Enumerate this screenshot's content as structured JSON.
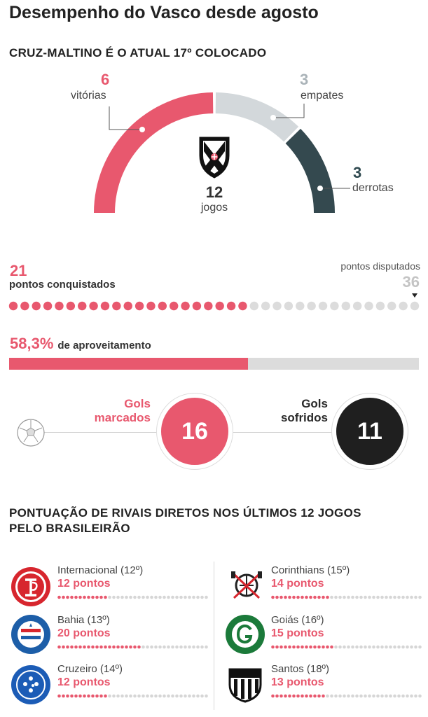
{
  "title": "Desempenho do Vasco desde agosto",
  "subtitle": "CRUZ-MALTINO É O ATUAL 17º COLOCADO",
  "chart_data": [
    {
      "type": "pie",
      "variant": "semicircle",
      "categories": [
        "vitórias",
        "empates",
        "derrotas"
      ],
      "values": [
        6,
        3,
        3
      ],
      "value_labels": [
        "6",
        "3",
        "3"
      ],
      "colors": [
        "#e8586e",
        "#d3d8db",
        "#34494f"
      ],
      "center_value": "12",
      "center_label": "jogos"
    },
    {
      "type": "bar",
      "variant": "dot-progress",
      "values": [
        21,
        36
      ],
      "won_value": "21",
      "won_label": "pontos conquistados",
      "total_value": "36",
      "total_label": "pontos disputados"
    },
    {
      "type": "bar",
      "variant": "progress",
      "values": [
        58.3
      ],
      "ylim": [
        0,
        100
      ],
      "value_label": "58,3%",
      "label": "de aproveitamento"
    },
    {
      "type": "table",
      "variant": "goals",
      "scored_label_1": "Gols",
      "scored_label_2": "marcados",
      "scored_value": "16",
      "conceded_label_1": "Gols",
      "conceded_label_2": "sofridos",
      "conceded_value": "11"
    },
    {
      "type": "bar",
      "variant": "dot-progress-list",
      "title_line1": "PONTUAÇÃO DE RIVAIS DIRETOS NOS ÚLTIMOS 12 JOGOS",
      "title_line2": "PELO BRASILEIRÃO",
      "max_points": 36,
      "teams": [
        {
          "name": "Internacional (12º)",
          "points": 12,
          "points_label": "12 pontos",
          "crest": "internacional-crest-icon",
          "color": "#d7262e"
        },
        {
          "name": "Bahia (13º)",
          "points": 20,
          "points_label": "20 pontos",
          "crest": "bahia-crest-icon",
          "color": "#1d5ea8"
        },
        {
          "name": "Cruzeiro (14º)",
          "points": 12,
          "points_label": "12 pontos",
          "crest": "cruzeiro-crest-icon",
          "color": "#1c5cb6"
        },
        {
          "name": "Corinthians (15º)",
          "points": 14,
          "points_label": "14 pontos",
          "crest": "corinthians-crest-icon",
          "color": "#222222"
        },
        {
          "name": "Goiás (16º)",
          "points": 15,
          "points_label": "15 pontos",
          "crest": "goias-crest-icon",
          "color": "#1b7a3a"
        },
        {
          "name": "Santos (18º)",
          "points": 13,
          "points_label": "13 pontos",
          "crest": "santos-crest-icon",
          "color": "#111111"
        }
      ]
    }
  ],
  "icons": {
    "vasco": "vasco-crest-icon",
    "ball": "soccer-ball-icon"
  }
}
